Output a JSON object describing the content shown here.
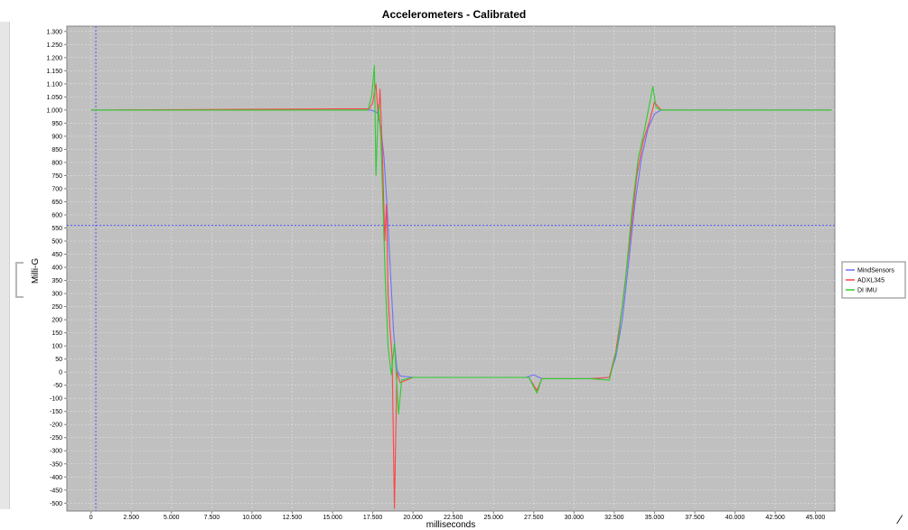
{
  "chart_data": {
    "type": "line",
    "title": "Accelerometers - Calibrated",
    "xlabel": "milliseconds",
    "ylabel": "Milli-G",
    "xlim": [
      -1500,
      46200
    ],
    "ylim": [
      -530,
      1320
    ],
    "x_ticks": [
      "0",
      "2.500",
      "5.000",
      "7.500",
      "10.000",
      "12.500",
      "15.000",
      "17.500",
      "20.000",
      "22.500",
      "25.000",
      "27.500",
      "30.000",
      "32.500",
      "35.000",
      "37.500",
      "40.000",
      "42.500",
      "45.000"
    ],
    "x_tick_values": [
      0,
      2500,
      5000,
      7500,
      10000,
      12500,
      15000,
      17500,
      20000,
      22500,
      25000,
      27500,
      30000,
      32500,
      35000,
      37500,
      40000,
      42500,
      45000
    ],
    "y_tick_values": [
      1300,
      1250,
      1200,
      1150,
      1100,
      1050,
      1000,
      950,
      900,
      850,
      800,
      750,
      700,
      650,
      600,
      550,
      500,
      450,
      400,
      350,
      300,
      250,
      200,
      150,
      100,
      50,
      0,
      -50,
      -100,
      -150,
      -200,
      -250,
      -300,
      -350,
      -400,
      -450,
      -500
    ],
    "y_ticks": [
      "1.300",
      "1.250",
      "1.200",
      "1.150",
      "1.100",
      "1.050",
      "1.000",
      "950",
      "900",
      "850",
      "800",
      "750",
      "700",
      "650",
      "600",
      "550",
      "500",
      "450",
      "400",
      "350",
      "300",
      "250",
      "200",
      "150",
      "100",
      "50",
      "0",
      "-50",
      "-100",
      "-150",
      "-200",
      "-250",
      "-300",
      "-350",
      "-400",
      "-450",
      "-500"
    ],
    "grid": true,
    "legend_position": "right",
    "crosshair": {
      "x": 300,
      "y": 560
    },
    "colors": {
      "plot_background": "#c0c0c0",
      "grid": "#e0e0e0",
      "crosshair": "#5555ff"
    },
    "series": [
      {
        "name": "MindSensors",
        "color": "#6f6fff",
        "x": [
          0,
          17400,
          17800,
          18000,
          18200,
          18400,
          18600,
          18800,
          19000,
          19200,
          20000,
          27000,
          27500,
          28000,
          31000,
          32200,
          32600,
          33000,
          33400,
          33800,
          34200,
          34600,
          35000,
          35400,
          46000
        ],
        "y": [
          1000,
          1000,
          990,
          930,
          820,
          620,
          380,
          150,
          10,
          -15,
          -20,
          -20,
          -10,
          -25,
          -25,
          -20,
          60,
          200,
          420,
          650,
          820,
          930,
          985,
          1000,
          1000
        ]
      },
      {
        "name": "ADXL345",
        "color": "#ff4444",
        "x": [
          0,
          17300,
          17500,
          17700,
          17850,
          17950,
          18100,
          18250,
          18350,
          18450,
          18550,
          18700,
          18850,
          19000,
          19200,
          20000,
          27200,
          27700,
          28000,
          31000,
          32200,
          32600,
          33000,
          33500,
          33900,
          34300,
          34700,
          35000,
          35400,
          46000
        ],
        "y": [
          1000,
          1005,
          1030,
          1100,
          960,
          1080,
          830,
          500,
          640,
          300,
          180,
          60,
          -520,
          0,
          -40,
          -20,
          -20,
          -70,
          -25,
          -25,
          -20,
          80,
          250,
          520,
          750,
          880,
          960,
          1030,
          1000,
          1000
        ]
      },
      {
        "name": "DI IMU",
        "color": "#2ecc2e",
        "x": [
          0,
          17200,
          17450,
          17600,
          17700,
          17850,
          18000,
          18150,
          18300,
          18450,
          18650,
          18850,
          19100,
          19300,
          20000,
          27200,
          27700,
          28000,
          31000,
          32200,
          32700,
          33200,
          33600,
          34000,
          34400,
          34900,
          35100,
          35400,
          46000
        ],
        "y": [
          1000,
          1000,
          1060,
          1170,
          750,
          1020,
          900,
          600,
          320,
          100,
          -10,
          110,
          -160,
          -30,
          -20,
          -20,
          -80,
          -25,
          -25,
          -30,
          100,
          350,
          620,
          820,
          930,
          1090,
          1010,
          1000,
          1000
        ]
      }
    ]
  }
}
